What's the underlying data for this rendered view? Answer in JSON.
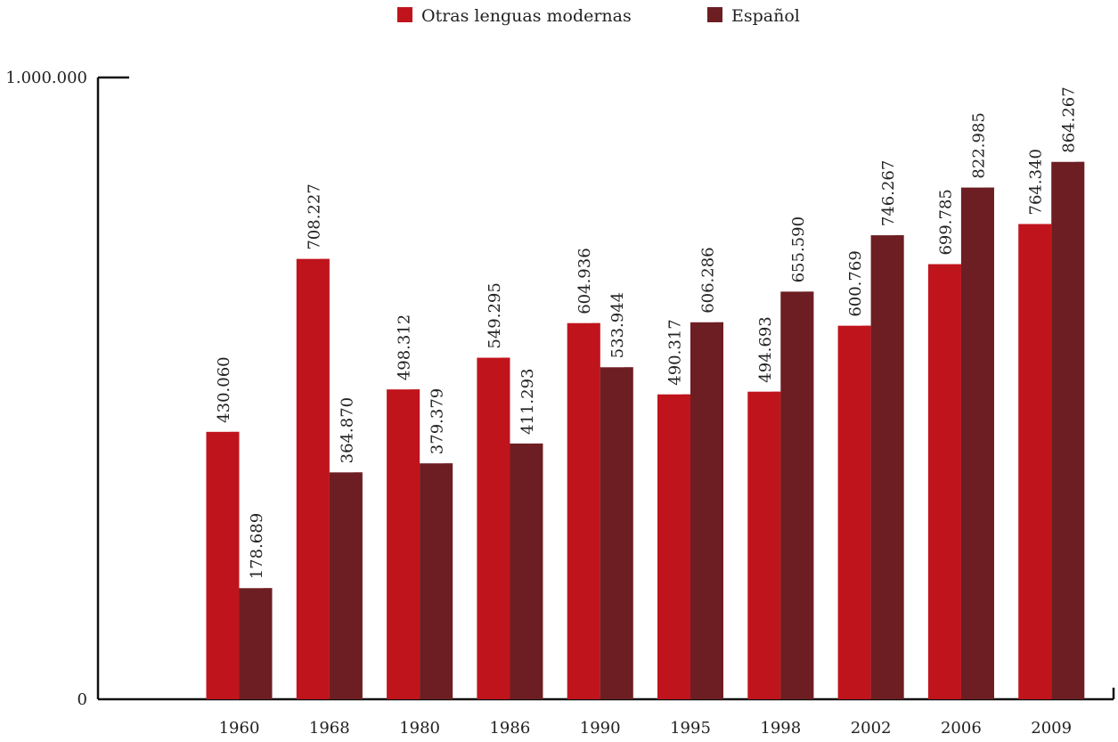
{
  "chart_data": {
    "type": "bar",
    "title": "",
    "xlabel": "",
    "ylabel": "",
    "categories": [
      "1960",
      "1968",
      "1980",
      "1986",
      "1990",
      "1995",
      "1998",
      "2002",
      "2006",
      "2009"
    ],
    "series": [
      {
        "name": "Otras lenguas modernas",
        "color": "#c0141c",
        "values": [
          430060,
          708227,
          498312,
          549295,
          604936,
          490317,
          494693,
          600769,
          699785,
          764340
        ],
        "labels": [
          "430.060",
          "708.227",
          "498.312",
          "549.295",
          "604.936",
          "490.317",
          "494.693",
          "600.769",
          "699.785",
          "764.340"
        ]
      },
      {
        "name": "Español",
        "color": "#6d1e22",
        "values": [
          178689,
          364870,
          379379,
          411293,
          533944,
          606286,
          655590,
          746267,
          822985,
          864267
        ],
        "labels": [
          "178.689",
          "364.870",
          "379.379",
          "411.293",
          "533.944",
          "606.286",
          "655.590",
          "746.267",
          "822.985",
          "864.267"
        ]
      }
    ],
    "ylim": [
      0,
      1000000
    ],
    "yticks": [
      {
        "value": 0,
        "label": "0"
      },
      {
        "value": 1000000,
        "label": "1.000.000"
      }
    ],
    "grid": false,
    "legend": "top-center"
  }
}
